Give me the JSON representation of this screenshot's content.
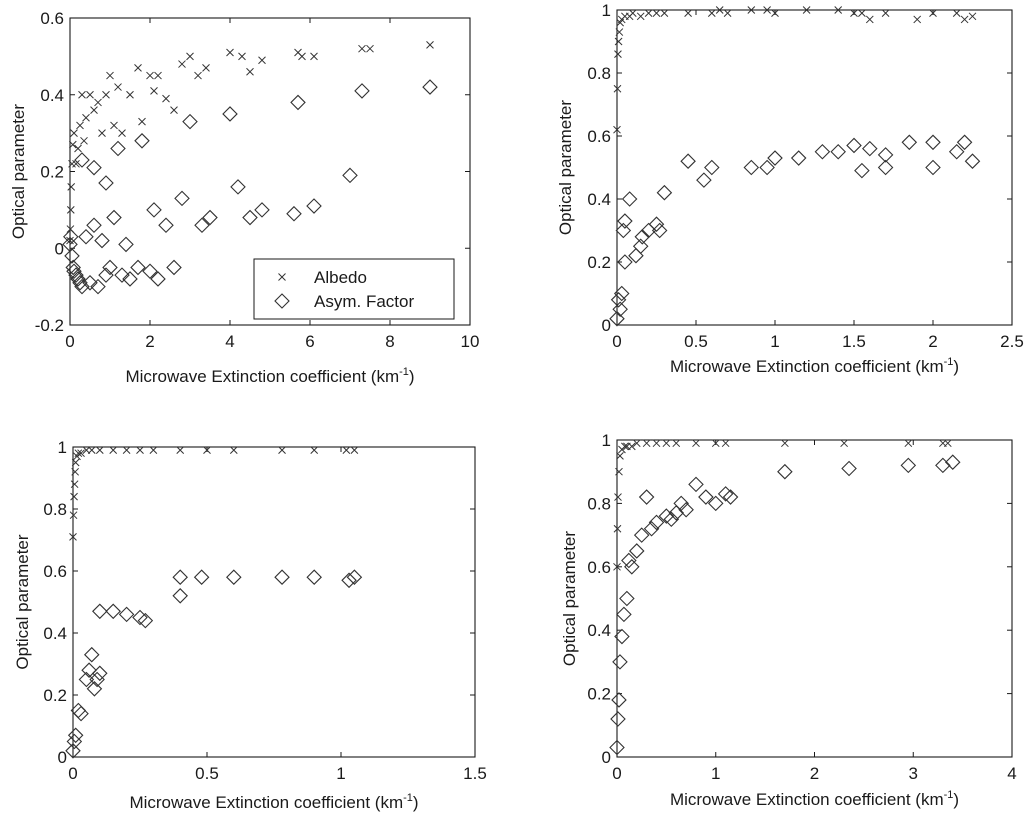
{
  "figure": {
    "colors": {
      "ink": "#1a1a1a",
      "marker": "#333333",
      "background": "#ffffff"
    },
    "marker_names": {
      "albedo": "x-marker",
      "asym": "diamond-marker"
    }
  },
  "chart_data": [
    {
      "type": "scatter",
      "xlabel": "Microwave Extinction coefficient (km",
      "xlabel_sup": "-1",
      "xlabel_end": ")",
      "ylabel": "Optical parameter",
      "xlim": [
        0,
        10
      ],
      "ylim": [
        -0.2,
        0.6
      ],
      "xticks": [
        0,
        2,
        4,
        6,
        8,
        10
      ],
      "yticks": [
        -0.2,
        0,
        0.2,
        0.4,
        0.6
      ],
      "xtick_labels": [
        "0",
        "2",
        "4",
        "6",
        "8",
        "10"
      ],
      "ytick_labels": [
        "-0.2",
        "0",
        "0.2",
        "0.4",
        "0.6"
      ],
      "legend": {
        "placement": "bottom-right",
        "entries": [
          "Albedo",
          "Asym. Factor"
        ]
      },
      "series": [
        {
          "name": "Albedo",
          "marker": "x",
          "x": [
            0.0,
            0.01,
            0.02,
            0.03,
            0.05,
            0.07,
            0.1,
            0.15,
            0.2,
            0.25,
            0.3,
            0.35,
            0.4,
            0.5,
            0.6,
            0.7,
            0.8,
            0.9,
            1.0,
            1.1,
            1.2,
            1.3,
            1.5,
            1.7,
            1.8,
            2.0,
            2.1,
            2.2,
            2.4,
            2.6,
            2.8,
            3.0,
            3.2,
            3.4,
            4.0,
            4.3,
            4.5,
            4.8,
            5.7,
            5.8,
            6.1,
            7.3,
            7.5,
            9.0
          ],
          "y": [
            0.02,
            0.05,
            0.1,
            0.16,
            0.22,
            0.27,
            0.3,
            0.22,
            0.26,
            0.32,
            0.4,
            0.28,
            0.34,
            0.4,
            0.36,
            0.38,
            0.3,
            0.4,
            0.45,
            0.32,
            0.42,
            0.3,
            0.4,
            0.47,
            0.33,
            0.45,
            0.41,
            0.45,
            0.39,
            0.36,
            0.48,
            0.5,
            0.45,
            0.47,
            0.51,
            0.5,
            0.46,
            0.49,
            0.51,
            0.5,
            0.5,
            0.52,
            0.52,
            0.53
          ]
        },
        {
          "name": "Asym. Factor",
          "marker": "diamond",
          "x": [
            0.0,
            0.02,
            0.05,
            0.08,
            0.1,
            0.15,
            0.2,
            0.25,
            0.3,
            0.4,
            0.5,
            0.6,
            0.7,
            0.8,
            0.9,
            1.0,
            1.1,
            1.3,
            1.4,
            1.5,
            1.7,
            1.8,
            2.0,
            2.1,
            2.2,
            2.4,
            2.6,
            2.8,
            3.0,
            3.3,
            3.5,
            4.0,
            4.2,
            4.5,
            4.8,
            5.6,
            5.7,
            6.1,
            7.0,
            7.3,
            9.0,
            0.6,
            0.9,
            1.2,
            0.3
          ],
          "y": [
            0.01,
            0.03,
            -0.02,
            -0.05,
            -0.06,
            -0.07,
            -0.08,
            -0.09,
            -0.1,
            0.03,
            -0.09,
            0.06,
            -0.1,
            0.02,
            -0.07,
            -0.05,
            0.08,
            -0.07,
            0.01,
            -0.08,
            -0.05,
            0.28,
            -0.06,
            0.1,
            -0.08,
            0.06,
            -0.05,
            0.13,
            0.33,
            0.06,
            0.08,
            0.35,
            0.16,
            0.08,
            0.1,
            0.09,
            0.38,
            0.11,
            0.19,
            0.41,
            0.42,
            0.21,
            0.17,
            0.26,
            0.23
          ]
        }
      ]
    },
    {
      "type": "scatter",
      "xlabel": "Microwave Extinction coefficient (km",
      "xlabel_sup": "-1",
      "xlabel_end": ")",
      "ylabel": "Optical parameter",
      "xlim": [
        0,
        2.5
      ],
      "ylim": [
        0,
        1
      ],
      "xticks": [
        0,
        0.5,
        1,
        1.5,
        2,
        2.5
      ],
      "yticks": [
        0,
        0.2,
        0.4,
        0.6,
        0.8,
        1
      ],
      "xtick_labels": [
        "0",
        "0.5",
        "1",
        "1.5",
        "2",
        "2.5"
      ],
      "ytick_labels": [
        "0",
        "0.2",
        "0.4",
        "0.6",
        "0.8",
        "1"
      ],
      "series": [
        {
          "marker": "x",
          "x": [
            0.0,
            0.003,
            0.006,
            0.01,
            0.015,
            0.02,
            0.03,
            0.05,
            0.08,
            0.1,
            0.15,
            0.2,
            0.25,
            0.3,
            0.45,
            0.6,
            0.65,
            0.7,
            0.85,
            0.95,
            1.0,
            1.2,
            1.4,
            1.5,
            1.55,
            1.6,
            1.7,
            1.9,
            2.0,
            2.15,
            2.2,
            2.25
          ],
          "y": [
            0.62,
            0.75,
            0.86,
            0.9,
            0.93,
            0.96,
            0.97,
            0.98,
            0.98,
            0.99,
            0.98,
            0.99,
            0.99,
            0.99,
            0.99,
            0.99,
            1.0,
            0.99,
            1.0,
            1.0,
            0.99,
            1.0,
            1.0,
            0.99,
            0.99,
            0.97,
            0.99,
            0.97,
            0.99,
            0.99,
            0.97,
            0.98
          ]
        },
        {
          "marker": "diamond",
          "x": [
            0.0,
            0.01,
            0.02,
            0.03,
            0.04,
            0.05,
            0.05,
            0.08,
            0.12,
            0.15,
            0.16,
            0.2,
            0.25,
            0.27,
            0.3,
            0.45,
            0.55,
            0.6,
            0.85,
            0.95,
            1.0,
            1.15,
            1.3,
            1.4,
            1.5,
            1.55,
            1.6,
            1.7,
            1.7,
            1.85,
            2.0,
            2.0,
            2.15,
            2.2,
            2.25
          ],
          "y": [
            0.02,
            0.08,
            0.05,
            0.1,
            0.3,
            0.33,
            0.2,
            0.4,
            0.22,
            0.25,
            0.28,
            0.3,
            0.32,
            0.3,
            0.42,
            0.52,
            0.46,
            0.5,
            0.5,
            0.5,
            0.53,
            0.53,
            0.55,
            0.55,
            0.57,
            0.49,
            0.56,
            0.54,
            0.5,
            0.58,
            0.5,
            0.58,
            0.55,
            0.58,
            0.52
          ]
        }
      ]
    },
    {
      "type": "scatter",
      "xlabel": "Microwave Extinction coefficient (km",
      "xlabel_sup": "-1",
      "xlabel_end": ")",
      "ylabel": "Optical parameter",
      "xlim": [
        0,
        1.5
      ],
      "ylim": [
        0,
        1
      ],
      "xticks": [
        0,
        0.5,
        1,
        1.5
      ],
      "yticks": [
        0,
        0.2,
        0.4,
        0.6,
        0.8,
        1
      ],
      "xtick_labels": [
        "0",
        "0.5",
        "1",
        "1.5"
      ],
      "ytick_labels": [
        "0",
        "0.2",
        "0.4",
        "0.6",
        "0.8",
        "1"
      ],
      "series": [
        {
          "marker": "x",
          "x": [
            0.0,
            0.002,
            0.004,
            0.006,
            0.008,
            0.01,
            0.015,
            0.02,
            0.03,
            0.05,
            0.07,
            0.1,
            0.15,
            0.2,
            0.25,
            0.3,
            0.4,
            0.5,
            0.6,
            0.78,
            0.9,
            1.02,
            1.05
          ],
          "y": [
            0.71,
            0.78,
            0.84,
            0.88,
            0.92,
            0.95,
            0.97,
            0.98,
            0.98,
            0.99,
            0.99,
            0.99,
            0.99,
            0.99,
            0.99,
            0.99,
            0.99,
            0.99,
            0.99,
            0.99,
            0.99,
            0.99,
            0.99
          ]
        },
        {
          "marker": "diamond",
          "x": [
            0.0,
            0.005,
            0.01,
            0.02,
            0.03,
            0.05,
            0.06,
            0.07,
            0.08,
            0.09,
            0.1,
            0.1,
            0.15,
            0.2,
            0.25,
            0.27,
            0.4,
            0.4,
            0.48,
            0.6,
            0.78,
            0.9,
            1.03,
            1.05
          ],
          "y": [
            0.02,
            0.05,
            0.07,
            0.15,
            0.14,
            0.25,
            0.28,
            0.33,
            0.22,
            0.25,
            0.27,
            0.47,
            0.47,
            0.46,
            0.45,
            0.44,
            0.58,
            0.52,
            0.58,
            0.58,
            0.58,
            0.58,
            0.57,
            0.58
          ]
        }
      ]
    },
    {
      "type": "scatter",
      "xlabel": "Microwave Extinction coefficient (km",
      "xlabel_sup": "-1",
      "xlabel_end": ")",
      "ylabel": "Optical parameter",
      "xlim": [
        0,
        4
      ],
      "ylim": [
        0,
        1
      ],
      "xticks": [
        0,
        1,
        2,
        3,
        4
      ],
      "yticks": [
        0,
        0.2,
        0.4,
        0.6,
        0.8,
        1
      ],
      "xtick_labels": [
        "0",
        "1",
        "2",
        "3",
        "4"
      ],
      "ytick_labels": [
        "0",
        "0.2",
        "0.4",
        "0.6",
        "0.8",
        "1"
      ],
      "series": [
        {
          "marker": "x",
          "x": [
            0.0,
            0.005,
            0.01,
            0.02,
            0.03,
            0.05,
            0.08,
            0.1,
            0.15,
            0.2,
            0.3,
            0.4,
            0.5,
            0.6,
            0.8,
            1.0,
            1.1,
            1.7,
            2.3,
            2.95,
            3.3,
            3.35
          ],
          "y": [
            0.6,
            0.72,
            0.82,
            0.9,
            0.95,
            0.97,
            0.98,
            0.98,
            0.98,
            0.99,
            0.99,
            0.99,
            0.99,
            0.99,
            0.99,
            0.99,
            0.99,
            0.99,
            0.99,
            0.99,
            0.99,
            0.99
          ]
        },
        {
          "marker": "diamond",
          "x": [
            0.0,
            0.01,
            0.02,
            0.03,
            0.05,
            0.07,
            0.1,
            0.12,
            0.15,
            0.2,
            0.25,
            0.3,
            0.35,
            0.4,
            0.5,
            0.55,
            0.6,
            0.65,
            0.7,
            0.8,
            0.9,
            1.0,
            1.1,
            1.15,
            1.7,
            2.35,
            2.95,
            3.3,
            3.4
          ],
          "y": [
            0.03,
            0.12,
            0.18,
            0.3,
            0.38,
            0.45,
            0.5,
            0.62,
            0.6,
            0.65,
            0.7,
            0.82,
            0.72,
            0.74,
            0.76,
            0.75,
            0.77,
            0.8,
            0.78,
            0.86,
            0.82,
            0.8,
            0.83,
            0.82,
            0.9,
            0.91,
            0.92,
            0.92,
            0.93
          ]
        }
      ]
    }
  ]
}
